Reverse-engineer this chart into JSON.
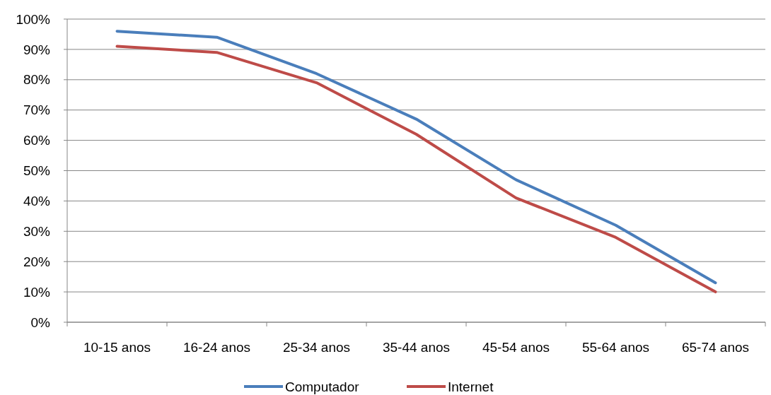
{
  "chart_data": {
    "type": "line",
    "categories": [
      "10-15 anos",
      "16-24 anos",
      "25-34 anos",
      "35-44 anos",
      "45-54 anos",
      "55-64 anos",
      "65-74 anos"
    ],
    "series": [
      {
        "name": "Computador",
        "color": "#4a7ebb",
        "values": [
          96,
          94,
          82,
          67,
          47,
          32,
          13
        ]
      },
      {
        "name": "Internet",
        "color": "#be4b48",
        "values": [
          91,
          89,
          79,
          62,
          41,
          28,
          10
        ]
      }
    ],
    "ylim": [
      0,
      100
    ],
    "yticks": [
      {
        "value": 0,
        "label": "0%"
      },
      {
        "value": 10,
        "label": "10%"
      },
      {
        "value": 20,
        "label": "20%"
      },
      {
        "value": 30,
        "label": "30%"
      },
      {
        "value": 40,
        "label": "40%"
      },
      {
        "value": 50,
        "label": "50%"
      },
      {
        "value": 60,
        "label": "60%"
      },
      {
        "value": 70,
        "label": "70%"
      },
      {
        "value": 80,
        "label": "80%"
      },
      {
        "value": 90,
        "label": "90%"
      },
      {
        "value": 100,
        "label": "100%"
      }
    ],
    "grid": "y",
    "legend": "bottom",
    "marker": "none",
    "line_style": "solid"
  }
}
